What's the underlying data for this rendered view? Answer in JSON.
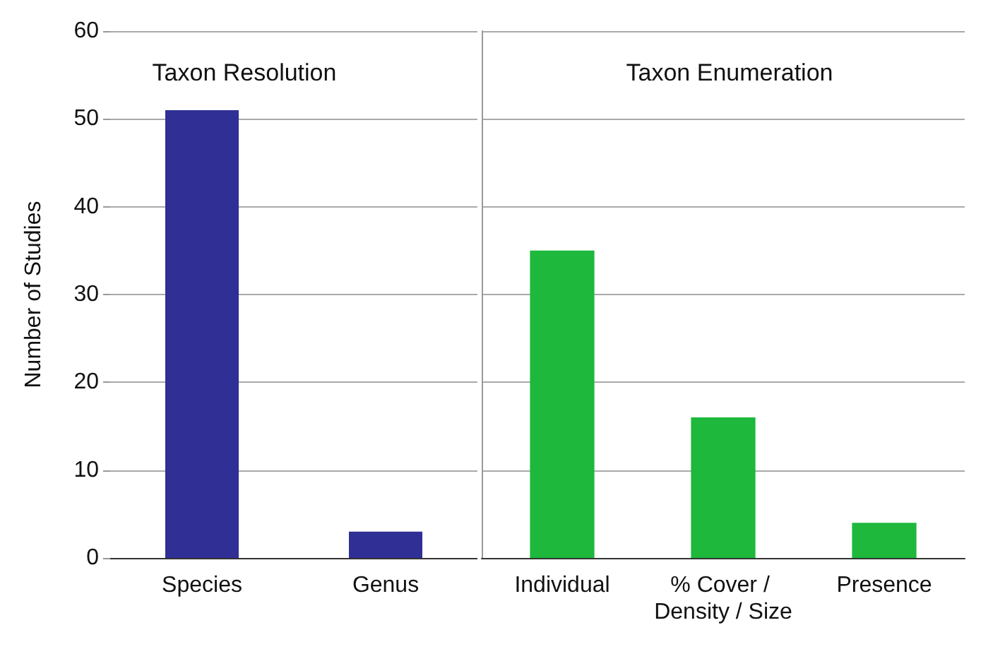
{
  "chart_data": [
    {
      "type": "bar",
      "title": "Taxon Resolution",
      "ylabel": "Number of Studies",
      "categories": [
        "Species",
        "Genus"
      ],
      "values": [
        51,
        3
      ],
      "color": "#2f2f96",
      "ylim": [
        0,
        60
      ],
      "yticks": [
        0,
        10,
        20,
        30,
        40,
        50,
        60
      ],
      "grid": "y"
    },
    {
      "type": "bar",
      "title": "Taxon Enumeration",
      "categories": [
        "Individual",
        "% Cover / Density / Size",
        "Presence"
      ],
      "values": [
        35,
        16,
        4
      ],
      "color": "#1db83c",
      "ylim": [
        0,
        60
      ],
      "yticks": [
        0,
        10,
        20,
        30,
        40,
        50,
        60
      ],
      "grid": "y",
      "tick_labels": "x"
    }
  ]
}
